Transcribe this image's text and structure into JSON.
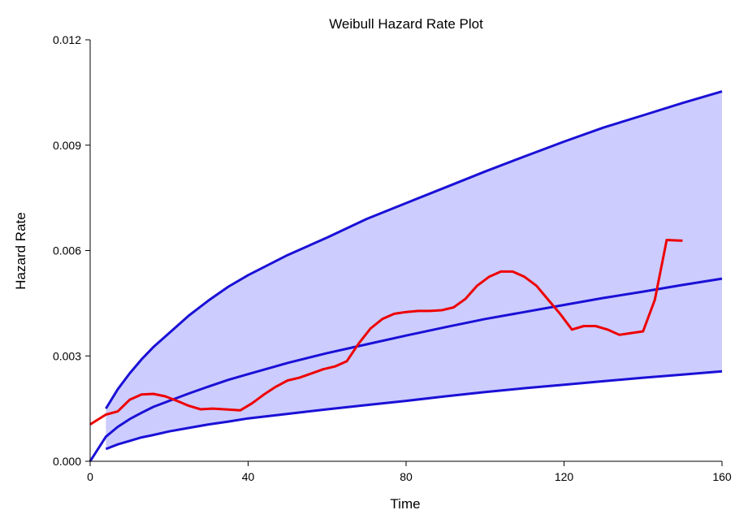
{
  "chart_data": {
    "type": "line",
    "title": "Weibull Hazard Rate Plot",
    "xlabel": "Time",
    "ylabel": "Hazard Rate",
    "xlim": [
      0,
      160
    ],
    "ylim": [
      0,
      0.012
    ],
    "xticks": [
      "0",
      "40",
      "80",
      "120",
      "160"
    ],
    "xtick_values": [
      0,
      40,
      80,
      120,
      160
    ],
    "yticks": [
      "0.000",
      "0.003",
      "0.006",
      "0.009",
      "0.012"
    ],
    "ytick_values": [
      0,
      0.003,
      0.006,
      0.009,
      0.012
    ],
    "grid": false,
    "legend": "none",
    "colors": {
      "band_fill": "#ccccff",
      "band_lines": "#1a10d6",
      "fit_line": "#1a10d6",
      "empirical_line": "#ee0000"
    },
    "band": {
      "x": [
        4,
        7,
        10,
        13,
        16,
        20,
        25,
        30,
        35,
        40,
        50,
        60,
        70,
        80,
        90,
        100,
        110,
        120,
        130,
        140,
        150,
        160
      ],
      "upper": [
        0.0015,
        0.00205,
        0.0025,
        0.0029,
        0.00325,
        0.00365,
        0.00415,
        0.00458,
        0.00497,
        0.0053,
        0.00587,
        0.00637,
        0.0069,
        0.00735,
        0.0078,
        0.00825,
        0.00868,
        0.0091,
        0.0095,
        0.00985,
        0.0102,
        0.01053
      ],
      "lower": [
        0.00035,
        0.00048,
        0.00058,
        0.00068,
        0.00075,
        0.00085,
        0.00095,
        0.00105,
        0.00113,
        0.00122,
        0.00135,
        0.00148,
        0.0016,
        0.00172,
        0.00185,
        0.00197,
        0.00208,
        0.00218,
        0.00228,
        0.00238,
        0.00247,
        0.00256
      ]
    },
    "series": [
      {
        "x": [
          0,
          4,
          7,
          10,
          13,
          16,
          20,
          25,
          30,
          35,
          40,
          50,
          60,
          70,
          80,
          90,
          100,
          110,
          120,
          130,
          140,
          150,
          160
        ],
        "values": [
          0.0,
          0.0007,
          0.00098,
          0.0012,
          0.00138,
          0.00155,
          0.00172,
          0.00193,
          0.00213,
          0.00232,
          0.00248,
          0.0028,
          0.00308,
          0.00333,
          0.00358,
          0.00382,
          0.00405,
          0.00425,
          0.00445,
          0.00465,
          0.00483,
          0.00502,
          0.0052
        ]
      },
      {
        "x": [
          0,
          4,
          7,
          10,
          13,
          16,
          19,
          22,
          25,
          28,
          31,
          34,
          38,
          41,
          44,
          47,
          50,
          53,
          56,
          59,
          62,
          65,
          68,
          71,
          74,
          77,
          80,
          83,
          86,
          89,
          92,
          95,
          98,
          101,
          104,
          107,
          110,
          113,
          116,
          119,
          122,
          125,
          128,
          131,
          134,
          137,
          140,
          143,
          146,
          150
        ],
        "values": [
          0.00105,
          0.00133,
          0.00142,
          0.00175,
          0.0019,
          0.00192,
          0.00185,
          0.00172,
          0.00158,
          0.00148,
          0.0015,
          0.00148,
          0.00145,
          0.00165,
          0.0019,
          0.00212,
          0.0023,
          0.00238,
          0.0025,
          0.00262,
          0.0027,
          0.00285,
          0.00335,
          0.00378,
          0.00405,
          0.0042,
          0.00425,
          0.00428,
          0.00428,
          0.0043,
          0.00438,
          0.00462,
          0.005,
          0.00525,
          0.0054,
          0.0054,
          0.00525,
          0.005,
          0.0046,
          0.0042,
          0.00375,
          0.00385,
          0.00385,
          0.00375,
          0.0036,
          0.00365,
          0.0037,
          0.0046,
          0.0063,
          0.00628
        ]
      }
    ]
  }
}
